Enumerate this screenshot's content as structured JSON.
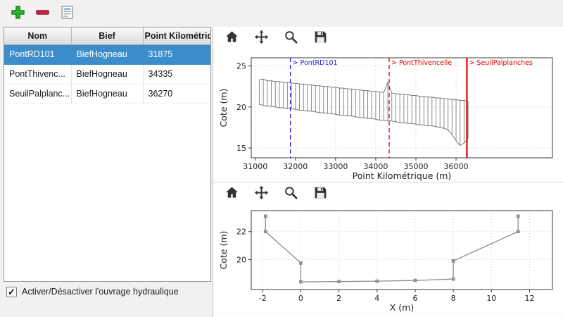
{
  "window": {
    "background": "#f2f1f0",
    "selection_color": "#3c8dcb"
  },
  "main_toolbar": {
    "buttons": [
      {
        "label": "add-ouvrage",
        "icon": "plus-icon",
        "color": "#28b428"
      },
      {
        "label": "remove-ouvrage",
        "icon": "minus-icon",
        "color": "#d02040"
      },
      {
        "label": "edit-ouvrage",
        "icon": "document-icon"
      }
    ]
  },
  "table": {
    "headers": [
      "Nom",
      "Bief",
      "Point Kilométrique"
    ],
    "rows": [
      {
        "nom": "PontRD101",
        "bief": "BiefHogneau",
        "pk": "31875",
        "selected": true
      },
      {
        "nom": "PontThivenc...",
        "bief": "BiefHogneau",
        "pk": "34335",
        "selected": false
      },
      {
        "nom": "SeuilPalplanc...",
        "bief": "BiefHogneau",
        "pk": "36270",
        "selected": false
      }
    ]
  },
  "footer": {
    "checkbox_label": "Activer/Désactiver l'ouvrage hydraulique",
    "checked": true,
    "check_glyph": "✓"
  },
  "mpl_toolbar": {
    "icons": [
      "home-icon",
      "pan-icon",
      "zoom-icon",
      "save-icon"
    ]
  },
  "chart_data": [
    {
      "type": "line",
      "name": "profil-longitudinal",
      "title": "",
      "xlabel": "Point Kilométrique (m)",
      "ylabel": "Cote (m)",
      "xlim": [
        30900,
        38400
      ],
      "ylim": [
        13.8,
        26.0
      ],
      "xticks": [
        31000,
        32000,
        33000,
        34000,
        35000,
        36000
      ],
      "yticks": [
        15,
        20,
        25
      ],
      "grid": true,
      "line_color": "#8a8a8a",
      "sections": {
        "x": [
          31100,
          31200,
          31300,
          31400,
          31500,
          31600,
          31700,
          31800,
          31900,
          32000,
          32100,
          32200,
          32300,
          32400,
          32500,
          32600,
          32700,
          32800,
          32900,
          33000,
          33100,
          33200,
          33300,
          33400,
          33500,
          33600,
          33700,
          33800,
          33900,
          34000,
          34100,
          34200,
          34300,
          34400,
          34500,
          34600,
          34700,
          34800,
          34900,
          35000,
          35100,
          35200,
          35300,
          35400,
          35500,
          35600,
          35700,
          35800,
          35900,
          36000,
          36100,
          36200,
          36300
        ],
        "top": [
          23.3,
          23.4,
          23.2,
          23.2,
          23.1,
          23.1,
          23.0,
          23.0,
          22.9,
          22.9,
          22.8,
          22.8,
          22.7,
          22.7,
          22.6,
          22.6,
          22.5,
          22.5,
          22.4,
          22.4,
          22.3,
          22.3,
          22.2,
          22.2,
          22.1,
          22.1,
          22.0,
          22.0,
          21.9,
          21.9,
          21.8,
          21.8,
          23.0,
          21.7,
          21.6,
          21.6,
          21.5,
          21.5,
          21.4,
          21.4,
          21.3,
          21.3,
          21.2,
          21.2,
          21.1,
          21.1,
          21.0,
          21.0,
          20.9,
          20.9,
          20.8,
          20.8,
          20.7
        ],
        "bottom": [
          20.3,
          20.2,
          20.1,
          20.1,
          20.0,
          19.9,
          19.9,
          19.8,
          19.8,
          19.7,
          19.6,
          19.6,
          19.5,
          19.5,
          19.4,
          19.3,
          19.3,
          19.2,
          19.2,
          19.1,
          19.0,
          19.0,
          18.9,
          18.9,
          18.8,
          18.7,
          18.7,
          18.6,
          18.6,
          18.5,
          18.4,
          18.4,
          18.3,
          18.3,
          18.2,
          18.1,
          18.1,
          18.0,
          18.0,
          17.9,
          17.8,
          17.8,
          17.7,
          17.7,
          17.6,
          17.5,
          17.4,
          17.2,
          16.6,
          15.9,
          15.3,
          15.6,
          16.2
        ]
      },
      "annotations": [
        {
          "x": 31875,
          "label": "> PontRD101",
          "color": "#2222dd",
          "style": "dashed"
        },
        {
          "x": 34335,
          "label": "> PontThivencelle",
          "color": "#e00000",
          "style": "dashed"
        },
        {
          "x": 36270,
          "label": "> SeuilPalplanches",
          "color": "#e00000",
          "style": "solid"
        }
      ]
    },
    {
      "type": "line",
      "name": "section-transversale",
      "title": "",
      "xlabel": "X (m)",
      "ylabel": "Cote (m)",
      "xlim": [
        -2.6,
        13.2
      ],
      "ylim": [
        17.85,
        23.5
      ],
      "xticks": [
        -2,
        0,
        2,
        4,
        6,
        8,
        10,
        12
      ],
      "yticks": [
        20,
        22
      ],
      "grid": true,
      "line_color": "#8a8a8a",
      "x": [
        -1.85,
        -1.85,
        0.0,
        0.0,
        2.0,
        4.0,
        6.0,
        8.0,
        8.0,
        11.4,
        11.4
      ],
      "y": [
        23.1,
        22.0,
        19.75,
        18.4,
        18.42,
        18.45,
        18.5,
        18.6,
        19.9,
        22.0,
        23.1
      ]
    }
  ]
}
